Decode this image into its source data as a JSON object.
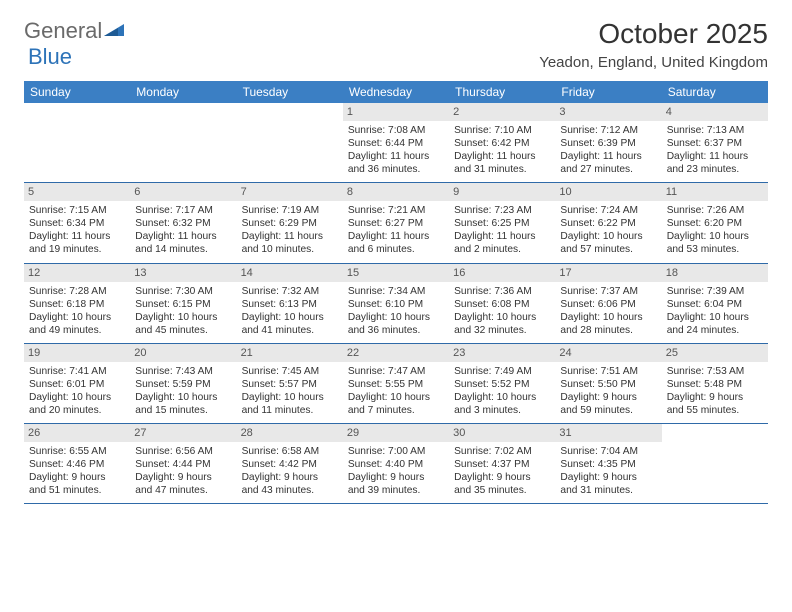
{
  "logo": {
    "text1": "General",
    "text2": "Blue"
  },
  "title": "October 2025",
  "location": "Yeadon, England, United Kingdom",
  "colors": {
    "header_bg": "#3b7fc4",
    "header_text": "#ffffff",
    "daynum_bg": "#e8e8e8",
    "border": "#2f6aa8",
    "accent": "#2d73b8"
  },
  "day_headers": [
    "Sunday",
    "Monday",
    "Tuesday",
    "Wednesday",
    "Thursday",
    "Friday",
    "Saturday"
  ],
  "weeks": [
    [
      null,
      null,
      null,
      {
        "n": "1",
        "sunrise": "Sunrise: 7:08 AM",
        "sunset": "Sunset: 6:44 PM",
        "day1": "Daylight: 11 hours",
        "day2": "and 36 minutes."
      },
      {
        "n": "2",
        "sunrise": "Sunrise: 7:10 AM",
        "sunset": "Sunset: 6:42 PM",
        "day1": "Daylight: 11 hours",
        "day2": "and 31 minutes."
      },
      {
        "n": "3",
        "sunrise": "Sunrise: 7:12 AM",
        "sunset": "Sunset: 6:39 PM",
        "day1": "Daylight: 11 hours",
        "day2": "and 27 minutes."
      },
      {
        "n": "4",
        "sunrise": "Sunrise: 7:13 AM",
        "sunset": "Sunset: 6:37 PM",
        "day1": "Daylight: 11 hours",
        "day2": "and 23 minutes."
      }
    ],
    [
      {
        "n": "5",
        "sunrise": "Sunrise: 7:15 AM",
        "sunset": "Sunset: 6:34 PM",
        "day1": "Daylight: 11 hours",
        "day2": "and 19 minutes."
      },
      {
        "n": "6",
        "sunrise": "Sunrise: 7:17 AM",
        "sunset": "Sunset: 6:32 PM",
        "day1": "Daylight: 11 hours",
        "day2": "and 14 minutes."
      },
      {
        "n": "7",
        "sunrise": "Sunrise: 7:19 AM",
        "sunset": "Sunset: 6:29 PM",
        "day1": "Daylight: 11 hours",
        "day2": "and 10 minutes."
      },
      {
        "n": "8",
        "sunrise": "Sunrise: 7:21 AM",
        "sunset": "Sunset: 6:27 PM",
        "day1": "Daylight: 11 hours",
        "day2": "and 6 minutes."
      },
      {
        "n": "9",
        "sunrise": "Sunrise: 7:23 AM",
        "sunset": "Sunset: 6:25 PM",
        "day1": "Daylight: 11 hours",
        "day2": "and 2 minutes."
      },
      {
        "n": "10",
        "sunrise": "Sunrise: 7:24 AM",
        "sunset": "Sunset: 6:22 PM",
        "day1": "Daylight: 10 hours",
        "day2": "and 57 minutes."
      },
      {
        "n": "11",
        "sunrise": "Sunrise: 7:26 AM",
        "sunset": "Sunset: 6:20 PM",
        "day1": "Daylight: 10 hours",
        "day2": "and 53 minutes."
      }
    ],
    [
      {
        "n": "12",
        "sunrise": "Sunrise: 7:28 AM",
        "sunset": "Sunset: 6:18 PM",
        "day1": "Daylight: 10 hours",
        "day2": "and 49 minutes."
      },
      {
        "n": "13",
        "sunrise": "Sunrise: 7:30 AM",
        "sunset": "Sunset: 6:15 PM",
        "day1": "Daylight: 10 hours",
        "day2": "and 45 minutes."
      },
      {
        "n": "14",
        "sunrise": "Sunrise: 7:32 AM",
        "sunset": "Sunset: 6:13 PM",
        "day1": "Daylight: 10 hours",
        "day2": "and 41 minutes."
      },
      {
        "n": "15",
        "sunrise": "Sunrise: 7:34 AM",
        "sunset": "Sunset: 6:10 PM",
        "day1": "Daylight: 10 hours",
        "day2": "and 36 minutes."
      },
      {
        "n": "16",
        "sunrise": "Sunrise: 7:36 AM",
        "sunset": "Sunset: 6:08 PM",
        "day1": "Daylight: 10 hours",
        "day2": "and 32 minutes."
      },
      {
        "n": "17",
        "sunrise": "Sunrise: 7:37 AM",
        "sunset": "Sunset: 6:06 PM",
        "day1": "Daylight: 10 hours",
        "day2": "and 28 minutes."
      },
      {
        "n": "18",
        "sunrise": "Sunrise: 7:39 AM",
        "sunset": "Sunset: 6:04 PM",
        "day1": "Daylight: 10 hours",
        "day2": "and 24 minutes."
      }
    ],
    [
      {
        "n": "19",
        "sunrise": "Sunrise: 7:41 AM",
        "sunset": "Sunset: 6:01 PM",
        "day1": "Daylight: 10 hours",
        "day2": "and 20 minutes."
      },
      {
        "n": "20",
        "sunrise": "Sunrise: 7:43 AM",
        "sunset": "Sunset: 5:59 PM",
        "day1": "Daylight: 10 hours",
        "day2": "and 15 minutes."
      },
      {
        "n": "21",
        "sunrise": "Sunrise: 7:45 AM",
        "sunset": "Sunset: 5:57 PM",
        "day1": "Daylight: 10 hours",
        "day2": "and 11 minutes."
      },
      {
        "n": "22",
        "sunrise": "Sunrise: 7:47 AM",
        "sunset": "Sunset: 5:55 PM",
        "day1": "Daylight: 10 hours",
        "day2": "and 7 minutes."
      },
      {
        "n": "23",
        "sunrise": "Sunrise: 7:49 AM",
        "sunset": "Sunset: 5:52 PM",
        "day1": "Daylight: 10 hours",
        "day2": "and 3 minutes."
      },
      {
        "n": "24",
        "sunrise": "Sunrise: 7:51 AM",
        "sunset": "Sunset: 5:50 PM",
        "day1": "Daylight: 9 hours",
        "day2": "and 59 minutes."
      },
      {
        "n": "25",
        "sunrise": "Sunrise: 7:53 AM",
        "sunset": "Sunset: 5:48 PM",
        "day1": "Daylight: 9 hours",
        "day2": "and 55 minutes."
      }
    ],
    [
      {
        "n": "26",
        "sunrise": "Sunrise: 6:55 AM",
        "sunset": "Sunset: 4:46 PM",
        "day1": "Daylight: 9 hours",
        "day2": "and 51 minutes."
      },
      {
        "n": "27",
        "sunrise": "Sunrise: 6:56 AM",
        "sunset": "Sunset: 4:44 PM",
        "day1": "Daylight: 9 hours",
        "day2": "and 47 minutes."
      },
      {
        "n": "28",
        "sunrise": "Sunrise: 6:58 AM",
        "sunset": "Sunset: 4:42 PM",
        "day1": "Daylight: 9 hours",
        "day2": "and 43 minutes."
      },
      {
        "n": "29",
        "sunrise": "Sunrise: 7:00 AM",
        "sunset": "Sunset: 4:40 PM",
        "day1": "Daylight: 9 hours",
        "day2": "and 39 minutes."
      },
      {
        "n": "30",
        "sunrise": "Sunrise: 7:02 AM",
        "sunset": "Sunset: 4:37 PM",
        "day1": "Daylight: 9 hours",
        "day2": "and 35 minutes."
      },
      {
        "n": "31",
        "sunrise": "Sunrise: 7:04 AM",
        "sunset": "Sunset: 4:35 PM",
        "day1": "Daylight: 9 hours",
        "day2": "and 31 minutes."
      },
      null
    ]
  ]
}
